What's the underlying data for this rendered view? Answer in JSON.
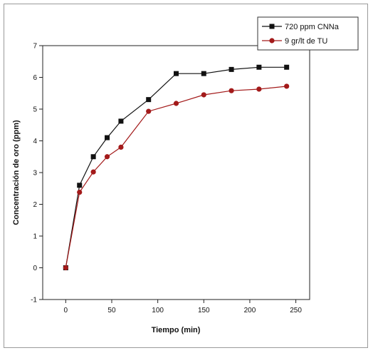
{
  "chart_data": {
    "type": "line",
    "title": "",
    "xlabel": "Tiempo (min)",
    "ylabel": "Concentración de oro (ppm)",
    "xlim": [
      -25,
      265
    ],
    "ylim": [
      -1,
      7
    ],
    "xticks": [
      0,
      50,
      100,
      150,
      200,
      250
    ],
    "yticks": [
      -1,
      0,
      1,
      2,
      3,
      4,
      5,
      6,
      7
    ],
    "grid": false,
    "legend": "top-right",
    "series": [
      {
        "name": "720 ppm CNNa",
        "color": "#111111",
        "marker": "square",
        "x": [
          0,
          15,
          30,
          45,
          60,
          90,
          120,
          150,
          180,
          210,
          240
        ],
        "y": [
          0,
          2.6,
          3.5,
          4.1,
          4.62,
          5.3,
          6.12,
          6.12,
          6.25,
          6.32,
          6.32
        ]
      },
      {
        "name": "9 gr/lt de TU",
        "color": "#a31a1a",
        "marker": "circle",
        "x": [
          0,
          15,
          30,
          45,
          60,
          90,
          120,
          150,
          180,
          210,
          240
        ],
        "y": [
          0,
          2.38,
          3.02,
          3.5,
          3.8,
          4.93,
          5.18,
          5.45,
          5.58,
          5.63,
          5.72
        ]
      }
    ]
  }
}
